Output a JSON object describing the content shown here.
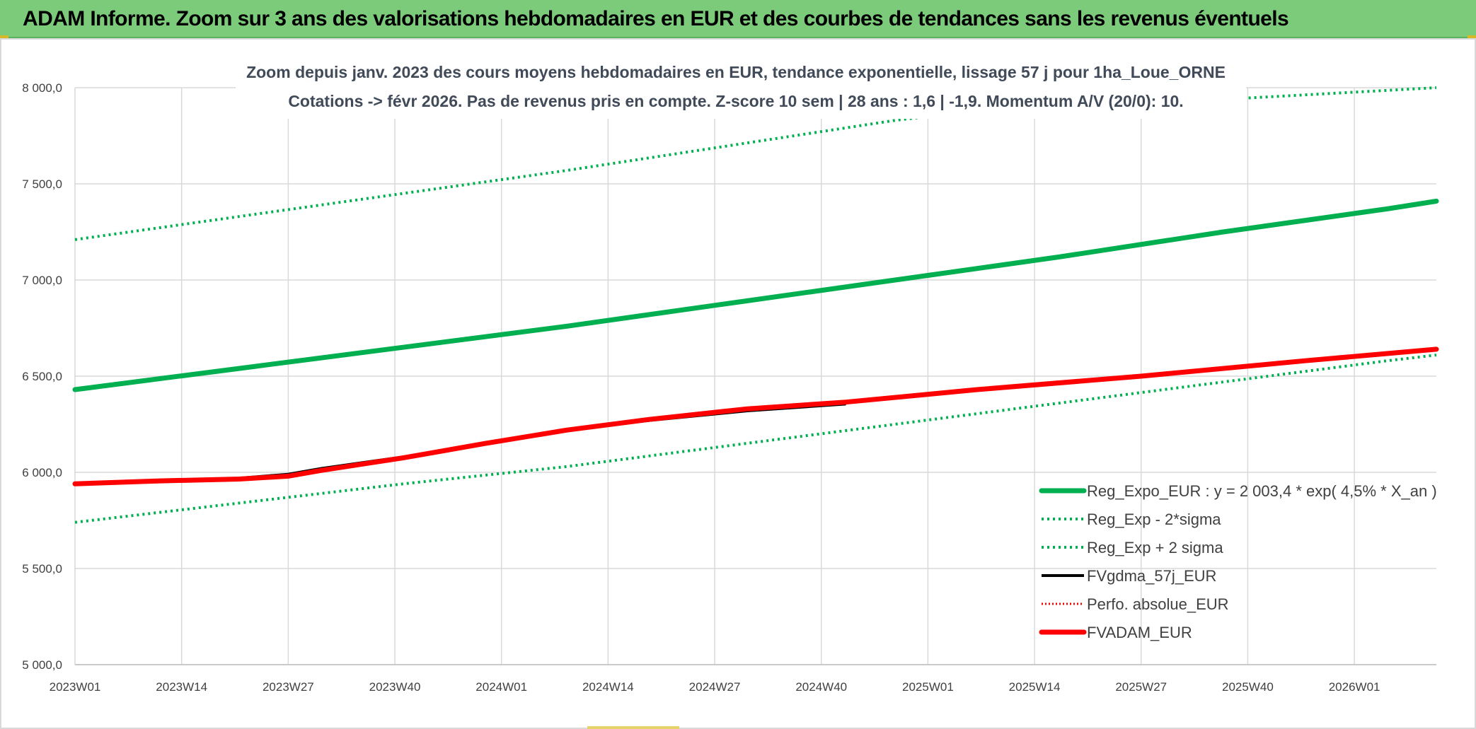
{
  "header": {
    "title": "ADAM Informe. Zoom sur 3 ans des valorisations hebdomadaires en EUR et des courbes de tendances sans les revenus éventuels"
  },
  "chart_data": {
    "type": "line",
    "title_lines": [
      "Zoom depuis janv. 2023 des cours moyens hebdomadaires en EUR, tendance exponentielle, lissage 57 j pour 1ha_Loue_ORNE",
      "Cotations -> févr 2026. Pas de revenus pris en compte. Z-score 10 sem | 28 ans : 1,6 | -1,9. Momentum A/V (20/0): 10."
    ],
    "xlabel": "",
    "ylabel": "",
    "ylim": [
      5000,
      8000
    ],
    "y_ticks": [
      "5 000,0",
      "5 500,0",
      "6 000,0",
      "6 500,0",
      "7 000,0",
      "7 500,0",
      "8 000,0"
    ],
    "y_tick_values": [
      5000,
      5500,
      6000,
      6500,
      7000,
      7500,
      8000
    ],
    "x_ticks": [
      "2023W01",
      "2023W14",
      "2023W27",
      "2023W40",
      "2024W01",
      "2024W14",
      "2024W27",
      "2024W40",
      "2025W01",
      "2025W14",
      "2025W27",
      "2025W40",
      "2026W01"
    ],
    "x_range_weeks": [
      0,
      166
    ],
    "grid": true,
    "legend_position": "bottom-right",
    "series": [
      {
        "name": "Reg_Expo_EUR : y = 2 003,4 * exp( 4,5% *  X_an )",
        "color": "#00b050",
        "style": "solid-thick",
        "x": [
          0,
          20,
          40,
          60,
          80,
          100,
          120,
          140,
          160,
          166
        ],
        "values": [
          6430,
          6540,
          6650,
          6760,
          6880,
          7000,
          7120,
          7250,
          7370,
          7410
        ]
      },
      {
        "name": "Reg_Exp - 2*sigma",
        "color": "#00b050",
        "style": "dotted",
        "x": [
          0,
          20,
          40,
          60,
          80,
          100,
          120,
          140,
          160,
          166
        ],
        "values": [
          5740,
          5840,
          5940,
          6030,
          6140,
          6250,
          6360,
          6470,
          6580,
          6610
        ]
      },
      {
        "name": "Reg_Exp + 2 sigma",
        "color": "#00b050",
        "style": "dotted",
        "x": [
          0,
          20,
          40,
          60,
          80,
          100,
          106,
          166
        ],
        "values": [
          7210,
          7330,
          7450,
          7570,
          7700,
          7830,
          7860,
          8000
        ]
      },
      {
        "name": "FVgdma_57j_EUR",
        "color": "#000000",
        "style": "solid",
        "x": [
          0,
          10,
          20,
          26,
          30,
          40,
          50,
          60,
          70,
          82,
          94
        ],
        "values": [
          5940,
          5955,
          5970,
          5990,
          6020,
          6080,
          6150,
          6220,
          6270,
          6320,
          6355
        ]
      },
      {
        "name": "Perfo. absolue_EUR",
        "color": "#ff0000",
        "style": "dotted-thin",
        "x": [],
        "values": []
      },
      {
        "name": "FVADAM_EUR",
        "color": "#ff0000",
        "style": "solid-thick",
        "x": [
          0,
          10,
          20,
          26,
          30,
          40,
          50,
          60,
          70,
          82,
          94,
          110,
          130,
          150,
          166
        ],
        "values": [
          5940,
          5955,
          5965,
          5980,
          6010,
          6075,
          6150,
          6220,
          6275,
          6330,
          6365,
          6430,
          6500,
          6580,
          6640
        ]
      }
    ]
  }
}
